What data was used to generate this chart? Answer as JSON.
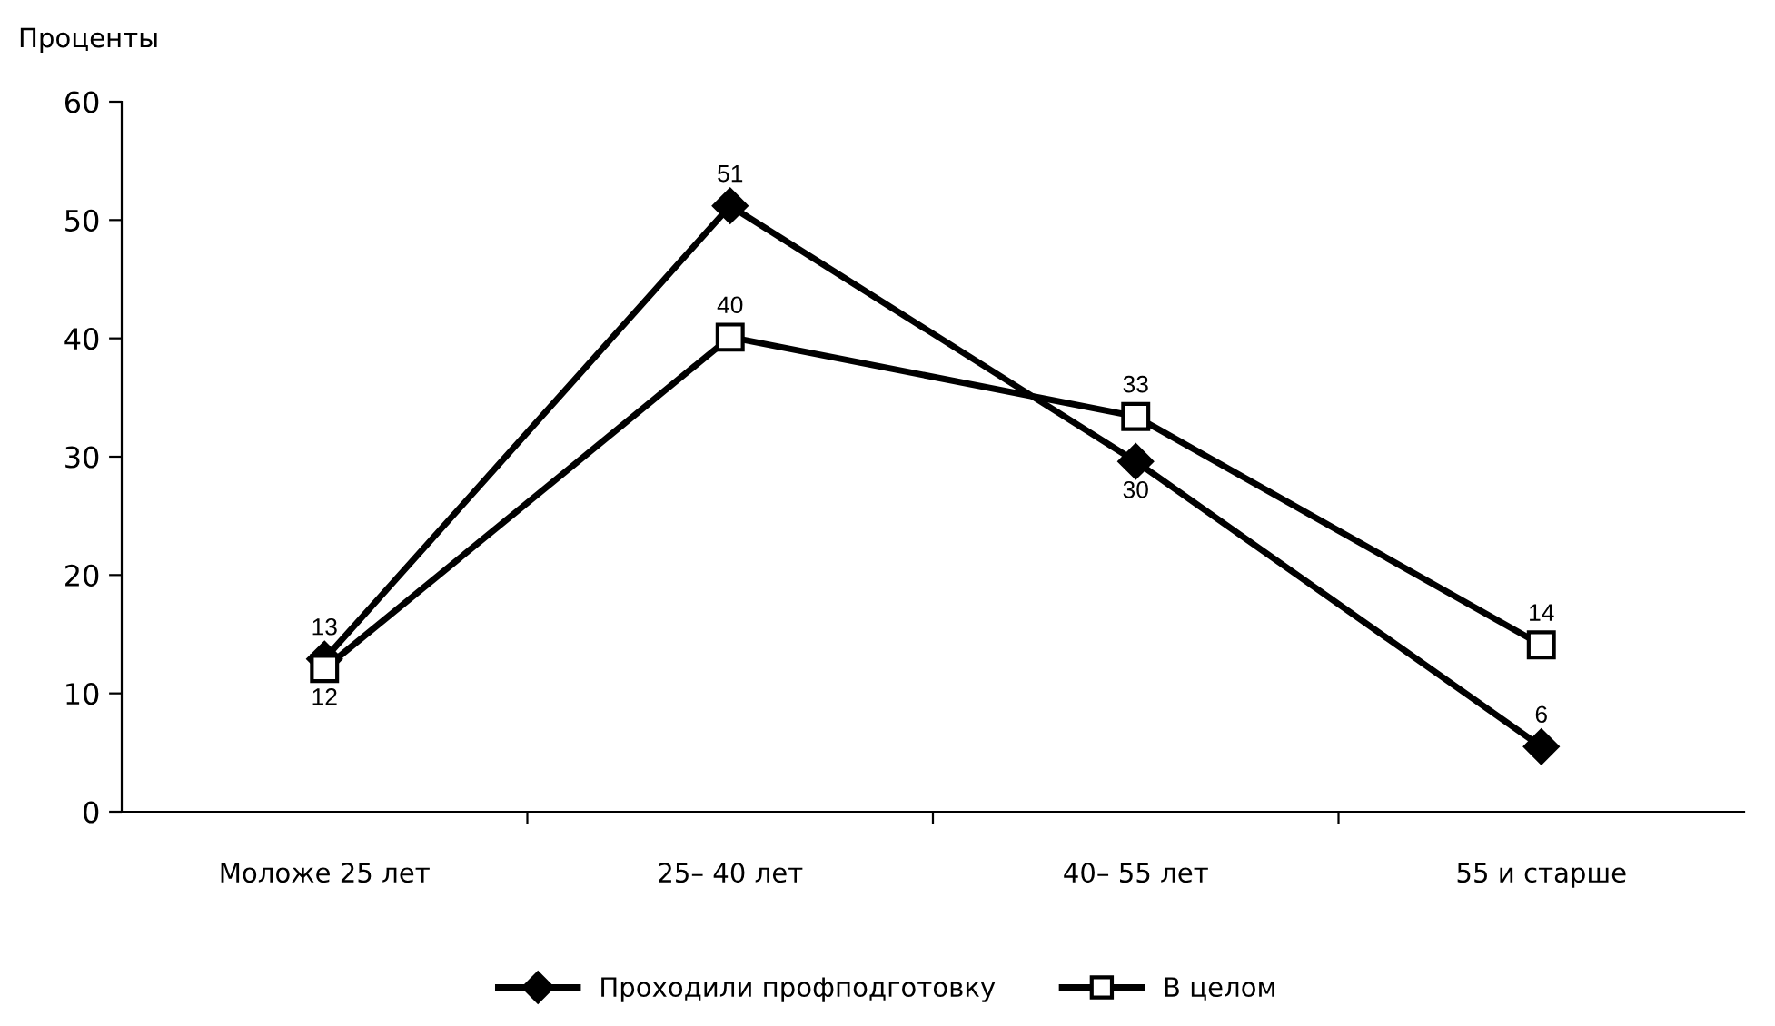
{
  "chart_data": {
    "type": "line",
    "ylabel": "Проценты",
    "categories": [
      "Моложе 25 лет",
      "25– 40 лет",
      "40– 55 лет",
      "55 и старше"
    ],
    "series": [
      {
        "name": "Проходили профподготовку",
        "color": "#000000",
        "marker": "diamond",
        "values": [
          12.9,
          51.2,
          29.6,
          5.5
        ],
        "value_labels": [
          "13",
          "51",
          "30",
          "6"
        ]
      },
      {
        "name": "В целом",
        "color": "#000000",
        "marker": "square",
        "values": [
          12.1,
          40.1,
          33.4,
          14.1
        ],
        "value_labels": [
          "12",
          "40",
          "33",
          "14"
        ]
      }
    ],
    "ylim": [
      0,
      60
    ],
    "yticks": [
      0,
      10,
      20,
      30,
      40,
      50,
      60
    ],
    "grid": false,
    "legend": "bottom",
    "line_style": "solid"
  }
}
